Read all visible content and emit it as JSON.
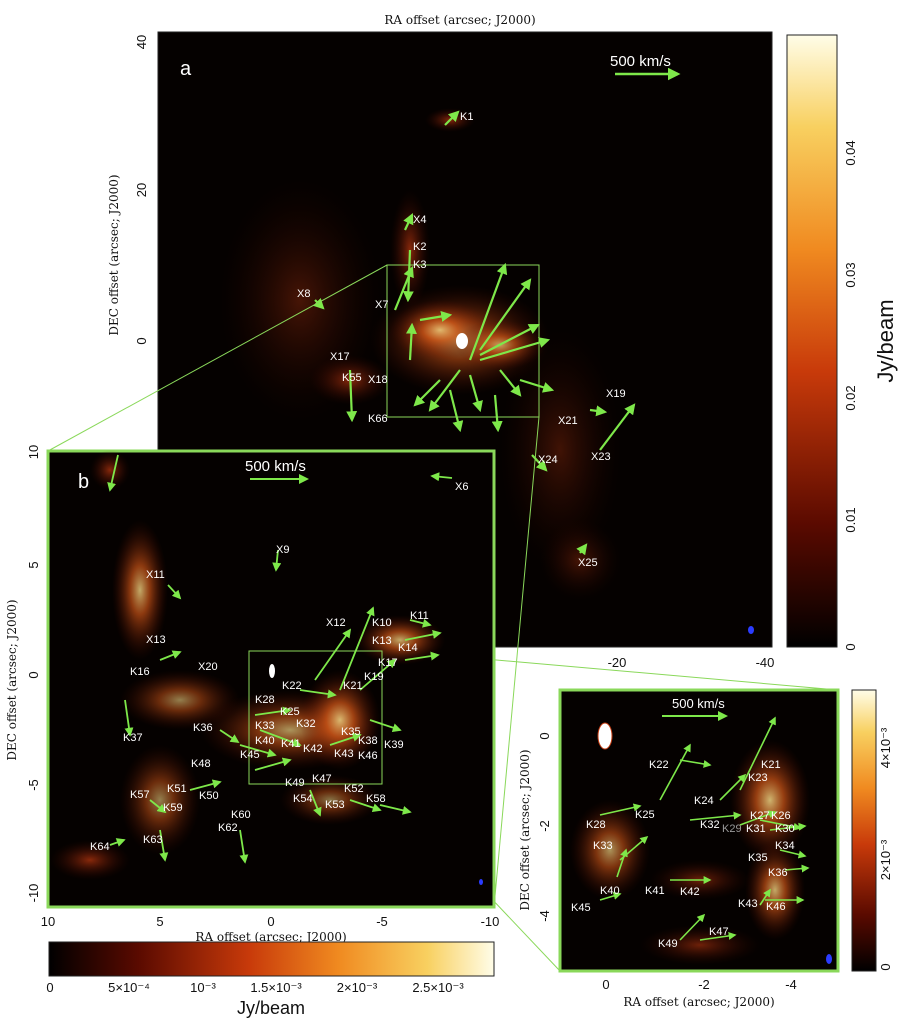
{
  "figure": {
    "panel_a": {
      "letter": "a",
      "top_label": "RA offset (arcsec; J2000)",
      "y_label": "DEC offset (arcsec; J2000)",
      "x_ticks": [
        "-20",
        "-40"
      ],
      "y_ticks": [
        "40",
        "20",
        "0"
      ],
      "scale_label": "500 km/s",
      "labels": [
        "K1",
        "X4",
        "K2",
        "K3",
        "X8",
        "X7",
        "X17",
        "K55",
        "X18",
        "K66",
        "X19",
        "X21",
        "X23",
        "X24",
        "X25"
      ],
      "colorbar": {
        "title": "Jy/beam",
        "ticks": [
          "0",
          "0.01",
          "0.02",
          "0.03",
          "0.04"
        ]
      }
    },
    "panel_b": {
      "letter": "b",
      "x_label": "RA offset (arcsec; J2000)",
      "y_label": "DEC offset (arcsec; J2000)",
      "x_ticks": [
        "10",
        "5",
        "0",
        "-5",
        "-10"
      ],
      "y_ticks": [
        "10",
        "5",
        "0",
        "-5",
        "-10"
      ],
      "scale_label": "500 km/s",
      "labels": [
        "X6",
        "X9",
        "X11",
        "X12",
        "K10",
        "K11",
        "X13",
        "K13",
        "K14",
        "K16",
        "X20",
        "K17",
        "K19",
        "K21",
        "K22",
        "K28",
        "K25",
        "K33",
        "K32",
        "K36",
        "K40",
        "K41",
        "K42",
        "K45",
        "K48",
        "K49",
        "K47",
        "K43",
        "K35",
        "K38",
        "K39",
        "K46",
        "K37",
        "K51",
        "K50",
        "K57",
        "K59",
        "K54",
        "K53",
        "K52",
        "K58",
        "K60",
        "K62",
        "K63",
        "K64"
      ],
      "colorbar": {
        "title": "Jy/beam",
        "ticks": [
          "0",
          "5×10⁻⁴",
          "10⁻³",
          "1.5×10⁻³",
          "2×10⁻³",
          "2.5×10⁻³"
        ]
      }
    },
    "panel_c": {
      "x_label": "RA offset (arcsec; J2000)",
      "y_label": "DEC offset (arcsec; J2000)",
      "x_ticks": [
        "0",
        "-2",
        "-4"
      ],
      "y_ticks": [
        "0",
        "-2",
        "-4"
      ],
      "scale_label": "500 km/s",
      "labels": [
        "K22",
        "K21",
        "K23",
        "K24",
        "K25",
        "K28",
        "K32",
        "K27",
        "K26",
        "K29",
        "K31",
        "K30",
        "K33",
        "K34",
        "K35",
        "K36",
        "K40",
        "K41",
        "K42",
        "K43",
        "K46",
        "K45",
        "K47",
        "K49"
      ],
      "colorbar": {
        "ticks": [
          "0",
          "2×10⁻³",
          "4×10⁻³"
        ]
      }
    }
  },
  "colors": {
    "vector": "#7ee84a",
    "box": "#8ad85a",
    "background": "#050100"
  }
}
